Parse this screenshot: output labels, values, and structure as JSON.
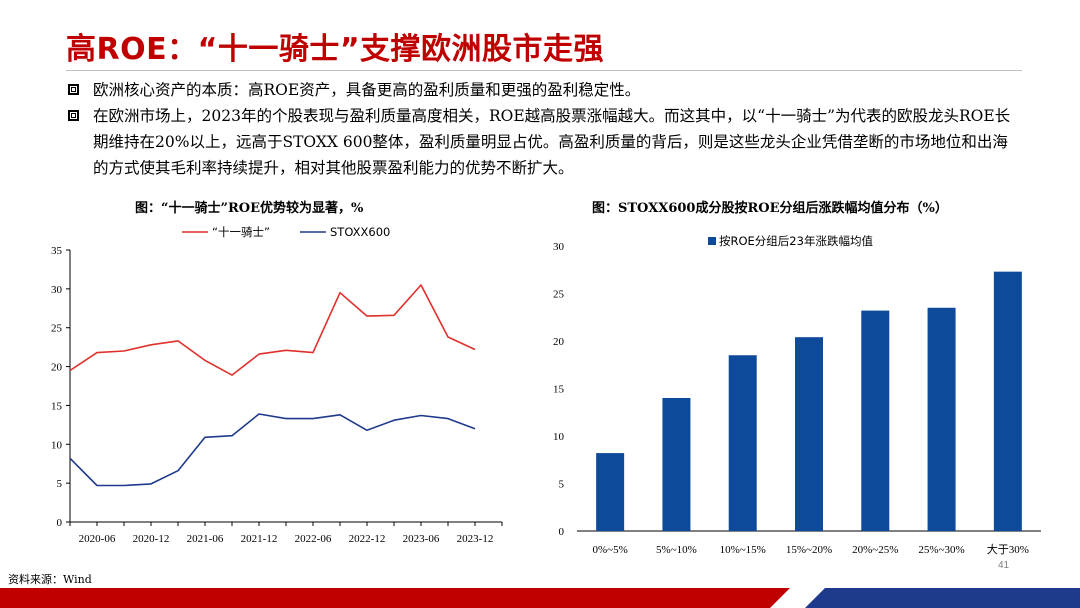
{
  "slide": {
    "title": "高ROE：“十一骑士”支撑欧洲股市走强",
    "bullets": [
      "欧洲核心资产的本质：高ROE资产，具备更高的盈利质量和更强的盈利稳定性。",
      "在欧洲市场上，2023年的个股表现与盈利质量高度相关，ROE越高股票涨幅越大。而这其中，以“十一骑士”为代表的欧股龙头ROE长期维持在20%以上，远高于STOXX 600整体，盈利质量明显占优。高盈利质量的背后，则是这些龙头企业凭借垄断的市场地位和出海的方式使其毛利率持续提升，相对其他股票盈利能力的优势不断扩大。"
    ],
    "source": "资料来源：Wind",
    "page_number": "41",
    "colors": {
      "title": "#c00000",
      "red_line": "#e0302b",
      "navy_line": "#1f3a8c",
      "bar": "#0d4a9a",
      "footer_red": "#c00000",
      "footer_navy": "#1f3a8c"
    }
  },
  "chart_data": [
    {
      "type": "line",
      "title": "图：“十一骑士”ROE优势较为显著，%",
      "x_tick_labels": [
        "2020-06",
        "2020-12",
        "2021-06",
        "2021-12",
        "2022-06",
        "2022-12",
        "2023-06",
        "2023-12"
      ],
      "x": [
        "2020-03",
        "2020-06",
        "2020-09",
        "2020-12",
        "2021-03",
        "2021-06",
        "2021-09",
        "2021-12",
        "2022-03",
        "2022-06",
        "2022-09",
        "2022-12",
        "2023-03",
        "2023-06",
        "2023-09",
        "2023-12",
        "2024-03"
      ],
      "series": [
        {
          "name": "“十一骑士”",
          "color": "#e0302b",
          "values": [
            19.5,
            21.8,
            22.0,
            22.8,
            23.3,
            20.8,
            18.9,
            21.6,
            22.1,
            21.8,
            29.5,
            26.5,
            26.6,
            30.5,
            23.8,
            22.2,
            null
          ]
        },
        {
          "name": "STOXX600",
          "color": "#1f3a8c",
          "values": [
            8.2,
            4.7,
            4.7,
            4.9,
            6.6,
            10.9,
            11.1,
            13.9,
            13.3,
            13.3,
            13.8,
            11.8,
            13.1,
            13.7,
            13.3,
            12.0,
            null
          ]
        }
      ],
      "ylim": [
        0,
        35
      ],
      "y_ticks": [
        0,
        5,
        10,
        15,
        20,
        25,
        30,
        35
      ],
      "legend": "top",
      "grid": false
    },
    {
      "type": "bar",
      "title": "图：STOXX600成分股按ROE分组后涨跌幅均值分布（%）",
      "categories": [
        "0%~5%",
        "5%~10%",
        "10%~15%",
        "15%~20%",
        "20%~25%",
        "25%~30%",
        "大于30%"
      ],
      "series": [
        {
          "name": "按ROE分组后23年涨跌幅均值",
          "color": "#0d4a9a",
          "values": [
            8.2,
            14.0,
            18.5,
            20.4,
            23.2,
            23.5,
            27.3
          ]
        }
      ],
      "ylim": [
        0,
        30
      ],
      "y_ticks": [
        0,
        5,
        10,
        15,
        20,
        25,
        30
      ],
      "legend": "top",
      "grid": false
    }
  ]
}
